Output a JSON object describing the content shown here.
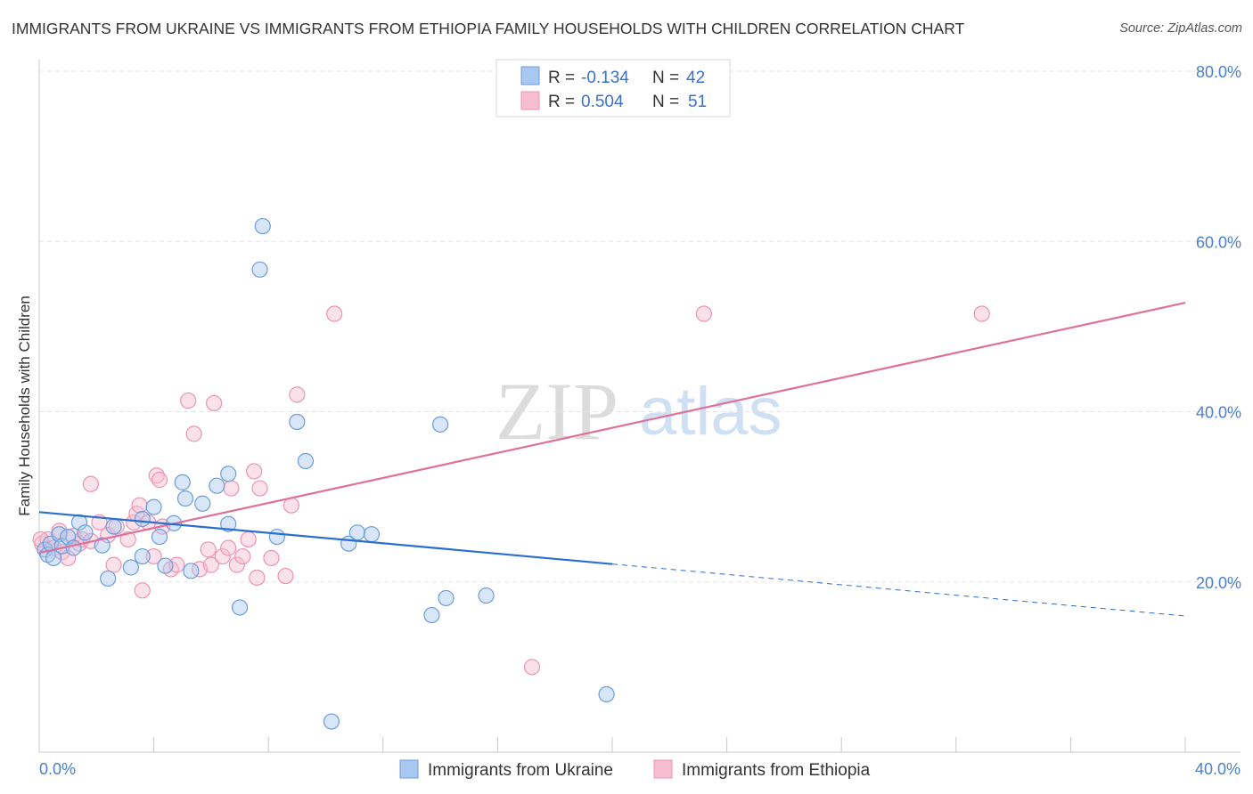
{
  "title": "IMMIGRANTS FROM UKRAINE VS IMMIGRANTS FROM ETHIOPIA FAMILY HOUSEHOLDS WITH CHILDREN CORRELATION CHART",
  "source": "Source: ZipAtlas.com",
  "watermark": {
    "zip": "ZIP",
    "atlas": "atlas"
  },
  "colors": {
    "ukraine_fill": "#a9c8f0",
    "ukraine_stroke": "#6d9ddc",
    "ukraine_line": "#2a6fd0",
    "ethiopia_fill": "#f6bed0",
    "ethiopia_stroke": "#ee93b0",
    "ethiopia_line": "#e0709a",
    "tick_text": "#4a7fd0"
  },
  "legend": {
    "r_label": "R =",
    "n_label": "N =",
    "entries": [
      {
        "r": "-0.134",
        "n": "42"
      },
      {
        "r": "0.504",
        "n": "51"
      }
    ]
  },
  "chart_data": {
    "type": "scatter",
    "xlabel": "",
    "ylabel": "Family Households with Children",
    "xlim": [
      0,
      40
    ],
    "ylim": [
      0,
      80
    ],
    "x_tick_labels": [
      "0.0%",
      "40.0%"
    ],
    "y_tick_labels": [
      "20.0%",
      "40.0%",
      "60.0%",
      "80.0%"
    ],
    "y_ticks": [
      20,
      40,
      60,
      80
    ],
    "gridlines": true,
    "series": [
      {
        "name": "Immigrants from Ukraine",
        "trend": {
          "x0": 0,
          "y0": 28.2,
          "x1": 20,
          "y1": 22.1,
          "x_dash_end": 40,
          "y_dash_end": 16.0
        },
        "points": [
          [
            0.2,
            23.8
          ],
          [
            0.3,
            23.2
          ],
          [
            0.4,
            24.5
          ],
          [
            0.5,
            22.8
          ],
          [
            0.7,
            25.6
          ],
          [
            0.8,
            24.2
          ],
          [
            1.0,
            25.3
          ],
          [
            1.2,
            24.0
          ],
          [
            1.4,
            27.0
          ],
          [
            1.6,
            25.8
          ],
          [
            2.2,
            24.3
          ],
          [
            2.4,
            20.4
          ],
          [
            2.6,
            26.5
          ],
          [
            3.2,
            21.7
          ],
          [
            3.6,
            27.4
          ],
          [
            3.6,
            23.0
          ],
          [
            4.0,
            28.8
          ],
          [
            4.2,
            25.3
          ],
          [
            4.4,
            21.9
          ],
          [
            4.7,
            26.9
          ],
          [
            5.0,
            31.7
          ],
          [
            5.1,
            29.8
          ],
          [
            5.3,
            21.3
          ],
          [
            5.7,
            29.2
          ],
          [
            6.2,
            31.3
          ],
          [
            6.6,
            26.8
          ],
          [
            6.6,
            32.7
          ],
          [
            7.0,
            17.0
          ],
          [
            7.7,
            56.7
          ],
          [
            7.8,
            61.8
          ],
          [
            8.3,
            25.3
          ],
          [
            9.0,
            38.8
          ],
          [
            9.3,
            34.2
          ],
          [
            10.2,
            3.6
          ],
          [
            10.8,
            24.5
          ],
          [
            11.1,
            25.8
          ],
          [
            11.6,
            25.6
          ],
          [
            13.7,
            16.1
          ],
          [
            14.0,
            38.5
          ],
          [
            14.2,
            18.1
          ],
          [
            15.6,
            18.4
          ],
          [
            19.8,
            6.8
          ]
        ]
      },
      {
        "name": "Immigrants from Ethiopia",
        "trend": {
          "x0": 0,
          "y0": 23.4,
          "x1": 40,
          "y1": 52.8
        },
        "points": [
          [
            0.1,
            24.5
          ],
          [
            0.3,
            25.0
          ],
          [
            0.5,
            24.0
          ],
          [
            0.7,
            26.0
          ],
          [
            0.8,
            23.5
          ],
          [
            1.0,
            22.8
          ],
          [
            1.2,
            25.4
          ],
          [
            1.4,
            24.5
          ],
          [
            1.5,
            25.0
          ],
          [
            1.8,
            24.8
          ],
          [
            1.8,
            31.5
          ],
          [
            2.1,
            27.0
          ],
          [
            2.4,
            25.5
          ],
          [
            2.6,
            22.0
          ],
          [
            2.7,
            26.5
          ],
          [
            3.1,
            25.0
          ],
          [
            3.3,
            27.0
          ],
          [
            3.4,
            28.0
          ],
          [
            3.5,
            29.0
          ],
          [
            3.6,
            19.0
          ],
          [
            3.8,
            27.0
          ],
          [
            4.0,
            23.0
          ],
          [
            4.1,
            32.5
          ],
          [
            4.2,
            32.0
          ],
          [
            4.3,
            26.5
          ],
          [
            4.6,
            21.5
          ],
          [
            4.8,
            22.0
          ],
          [
            5.2,
            41.3
          ],
          [
            5.4,
            37.4
          ],
          [
            5.6,
            21.5
          ],
          [
            5.9,
            23.8
          ],
          [
            6.0,
            22.0
          ],
          [
            6.1,
            41.0
          ],
          [
            6.4,
            23.0
          ],
          [
            6.6,
            24.0
          ],
          [
            6.7,
            31.0
          ],
          [
            6.9,
            22.0
          ],
          [
            7.1,
            23.0
          ],
          [
            7.3,
            25.0
          ],
          [
            7.5,
            33.0
          ],
          [
            7.6,
            20.5
          ],
          [
            7.7,
            31.0
          ],
          [
            8.1,
            22.8
          ],
          [
            8.6,
            20.7
          ],
          [
            8.8,
            29.0
          ],
          [
            9.0,
            42.0
          ],
          [
            10.3,
            51.5
          ],
          [
            17.2,
            10.0
          ],
          [
            23.2,
            51.5
          ],
          [
            32.9,
            51.5
          ],
          [
            0.05,
            25.0
          ]
        ]
      }
    ]
  },
  "bottom_legend": [
    "Immigrants from Ukraine",
    "Immigrants from Ethiopia"
  ]
}
